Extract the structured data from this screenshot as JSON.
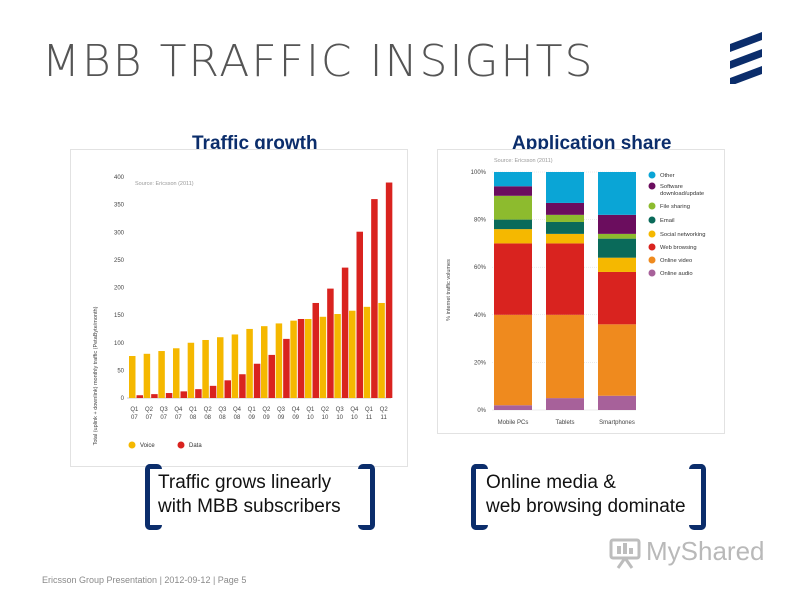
{
  "slide": {
    "title": "MBB TRAFFIC INSIGHTS",
    "footer": {
      "company": "Ericsson Group Presentation",
      "date": "2012-09-12",
      "page": "Page 5",
      "separator": " | "
    },
    "watermark": "MyShared"
  },
  "panels": {
    "growth": {
      "title": "Traffic growth",
      "source": "Source: Ericsson (2011)",
      "ylabel": "Total (uplink + downlink) monthly traffic (PetaByte/month)",
      "legend": [
        "Voice",
        "Data"
      ],
      "caption": [
        "Traffic grows linearly",
        "with MBB subscribers"
      ]
    },
    "apps": {
      "title": "Application share",
      "source": "Source: Ericsson (2011)",
      "ylabel": "% internet traffic volumes",
      "caption": [
        "Online media &",
        "web browsing dominate"
      ]
    }
  },
  "colors": {
    "voice": "#f5b800",
    "data": "#d9231f",
    "brand_blue": "#0b2d6b",
    "other": "#0aa5d6",
    "software": "#6b0d5e",
    "file_sharing": "#8dbb2e",
    "email": "#0a6a5a",
    "social": "#f5b800",
    "web": "#d9231f",
    "video": "#ef8a1e",
    "audio": "#a7619a"
  },
  "chart_data": [
    {
      "type": "bar",
      "title": "Traffic growth",
      "xlabel": "",
      "ylabel": "Total (uplink + downlink) monthly traffic (PetaByte/month)",
      "ylim": [
        0,
        400
      ],
      "yticks": [
        0,
        50,
        100,
        150,
        200,
        250,
        300,
        350,
        400
      ],
      "grid": false,
      "legend_position": "bottom-left",
      "categories": [
        [
          "Q1",
          "07"
        ],
        [
          "Q2",
          "07"
        ],
        [
          "Q3",
          "07"
        ],
        [
          "Q4",
          "07"
        ],
        [
          "Q1",
          "08"
        ],
        [
          "Q2",
          "08"
        ],
        [
          "Q3",
          "08"
        ],
        [
          "Q4",
          "08"
        ],
        [
          "Q1",
          "09"
        ],
        [
          "Q2",
          "09"
        ],
        [
          "Q3",
          "09"
        ],
        [
          "Q4",
          "09"
        ],
        [
          "Q1",
          "10"
        ],
        [
          "Q2",
          "10"
        ],
        [
          "Q3",
          "10"
        ],
        [
          "Q4",
          "10"
        ],
        [
          "Q1",
          "11"
        ],
        [
          "Q2",
          "11"
        ]
      ],
      "series": [
        {
          "name": "Voice",
          "values": [
            76,
            80,
            85,
            90,
            100,
            105,
            110,
            115,
            125,
            130,
            135,
            140,
            143,
            147,
            152,
            158,
            165,
            172
          ]
        },
        {
          "name": "Data",
          "values": [
            5,
            7,
            9,
            12,
            16,
            22,
            32,
            43,
            62,
            78,
            107,
            143,
            172,
            198,
            236,
            301,
            360,
            390
          ]
        }
      ]
    },
    {
      "type": "bar",
      "stacked": true,
      "title": "Application share",
      "xlabel": "",
      "ylabel": "% internet traffic volumes",
      "ylim": [
        0,
        100
      ],
      "yticks": [
        "0%",
        "20%",
        "40%",
        "60%",
        "80%",
        "100%"
      ],
      "grid": true,
      "legend_position": "right",
      "categories": [
        "Mobile PCs",
        "Tablets",
        "Smartphones"
      ],
      "series": [
        {
          "name": "Online audio",
          "values": [
            2,
            5,
            6
          ]
        },
        {
          "name": "Online video",
          "values": [
            38,
            35,
            30
          ]
        },
        {
          "name": "Web browsing",
          "values": [
            30,
            30,
            22
          ]
        },
        {
          "name": "Social networking",
          "values": [
            6,
            4,
            6
          ]
        },
        {
          "name": "Email",
          "values": [
            4,
            5,
            8
          ]
        },
        {
          "name": "File sharing",
          "values": [
            10,
            3,
            2
          ]
        },
        {
          "name": "Software download/update",
          "values": [
            4,
            5,
            8
          ]
        },
        {
          "name": "Other",
          "values": [
            6,
            13,
            18
          ]
        }
      ],
      "legend_order": [
        "Other",
        "Software download/update",
        "File sharing",
        "Email",
        "Social networking",
        "Web browsing",
        "Online video",
        "Online audio"
      ]
    }
  ]
}
